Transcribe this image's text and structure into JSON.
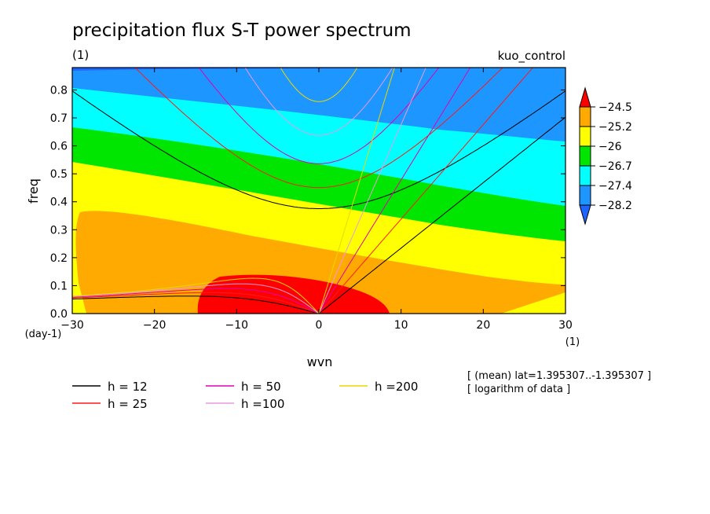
{
  "chart_data": {
    "type": "heatmap",
    "title": "precipitation flux S-T power spectrum",
    "subtitle_left": "(1)",
    "subtitle_right": "kuo_control",
    "xlabel": "wvn",
    "ylabel": "freq",
    "x_unit": "(1)",
    "y_unit": "(day-1)",
    "xlim": [
      -30,
      30
    ],
    "ylim": [
      0,
      0.88
    ],
    "x_ticks": [
      -30,
      -20,
      -10,
      0,
      10,
      20,
      30
    ],
    "x_tick_labels": [
      "−30",
      "−20",
      "−10",
      "0",
      "10",
      "20",
      "30"
    ],
    "y_ticks": [
      0,
      0.1,
      0.2,
      0.3,
      0.4,
      0.5,
      0.6,
      0.7,
      0.8
    ],
    "y_tick_labels": [
      "0.0",
      "0.1",
      "0.2",
      "0.3",
      "0.4",
      "0.5",
      "0.6",
      "0.7",
      "0.8"
    ],
    "colorbar": {
      "levels": [
        -28.2,
        -27.4,
        -26.7,
        -26,
        -25.2,
        -24.5
      ],
      "labels": [
        "−28.2",
        "−27.4",
        "−26.7",
        "−26",
        "−25.2",
        "−24.5"
      ],
      "colors": [
        "#1e64ff",
        "#1e96ff",
        "#00ffff",
        "#00e600",
        "#ffff00",
        "#ffaa00",
        "#ff0000"
      ]
    },
    "dispersion_curves": [
      {
        "label": "h = 12",
        "h": 12,
        "color": "#000000"
      },
      {
        "label": "h = 25",
        "h": 25,
        "color": "#ff1a1a"
      },
      {
        "label": "h = 50",
        "h": 50,
        "color": "#e000b0"
      },
      {
        "label": "h =100",
        "h": 100,
        "color": "#e89ae0"
      },
      {
        "label": "h =200",
        "h": 200,
        "color": "#e8d800"
      }
    ],
    "annotations": [
      "[ (mean) lat=1.395307..-1.395307 ]",
      "[ logarithm of data ]"
    ]
  }
}
